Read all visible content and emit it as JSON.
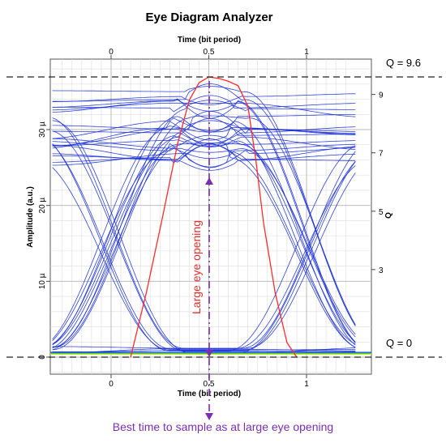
{
  "chart_data": {
    "type": "line",
    "title": "Eye Diagram Analyzer",
    "xlabel_top": "Time (bit period)",
    "xlabel_bottom": "Time (bit period)",
    "ylabel_left": "Amplitude (a.u.)",
    "ylabel_right": "Q",
    "x_ticks_top": [
      "0",
      "0.5",
      "1"
    ],
    "x_ticks_bottom": [
      "0",
      "0.5",
      "1"
    ],
    "y_ticks_left": [
      "0",
      "10 µ",
      "20 µ",
      "30 µ"
    ],
    "y_ticks_right": [
      "3",
      "5",
      "7",
      "9"
    ],
    "xlim": [
      -0.3,
      1.25
    ],
    "ylim": [
      -2e-06,
      3.9e-05
    ],
    "qlim": [
      1.2,
      9.9
    ],
    "grid": true,
    "q_curve": {
      "color": "#ff2a2a",
      "x": [
        0.1,
        0.18,
        0.26,
        0.34,
        0.4,
        0.45,
        0.5,
        0.55,
        0.6,
        0.65,
        0.7,
        0.74,
        0.78,
        0.84,
        0.9,
        0.95
      ],
      "q": [
        0,
        2.2,
        4.7,
        7.3,
        8.8,
        9.4,
        9.6,
        9.55,
        9.45,
        9.3,
        8.6,
        6.8,
        4.6,
        2.2,
        0.5,
        0
      ]
    },
    "q_max": 9.6,
    "q_min": 0,
    "eye_traces": {
      "color": "#1a2fd6",
      "count": 40,
      "high_level_range": [
        2.6e-05,
        3.5e-05
      ],
      "low_level": 5e-07
    }
  },
  "annotations": {
    "q_top_label": "Q = 9.6",
    "q_bottom_label": "Q = 0",
    "eye_opening_label": "Large eye opening",
    "sample_label": "Best time to sample as at large eye opening",
    "sample_time": 0.5,
    "arrow_color": "#7a2fb0",
    "eye_label_color": "#e03030"
  }
}
